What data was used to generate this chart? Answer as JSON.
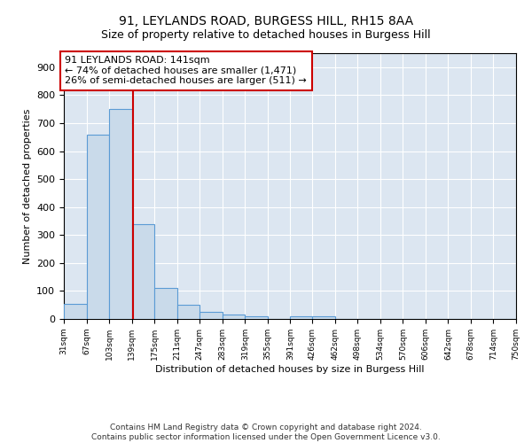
{
  "title1": "91, LEYLANDS ROAD, BURGESS HILL, RH15 8AA",
  "title2": "Size of property relative to detached houses in Burgess Hill",
  "xlabel": "Distribution of detached houses by size in Burgess Hill",
  "ylabel": "Number of detached properties",
  "bin_edges": [
    31,
    67,
    103,
    139,
    175,
    211,
    247,
    283,
    319,
    355,
    391,
    426,
    462,
    498,
    534,
    570,
    606,
    642,
    678,
    714,
    750
  ],
  "bar_heights": [
    55,
    660,
    750,
    340,
    110,
    52,
    25,
    15,
    10,
    0,
    10,
    10,
    0,
    0,
    0,
    0,
    0,
    0,
    0,
    0
  ],
  "bar_color": "#c9daea",
  "bar_edge_color": "#5b9bd5",
  "property_line_x": 141,
  "property_line_color": "#cc0000",
  "annotation_text": "91 LEYLANDS ROAD: 141sqm\n← 74% of detached houses are smaller (1,471)\n26% of semi-detached houses are larger (511) →",
  "annotation_box_color": "#ffffff",
  "annotation_box_edge_color": "#cc0000",
  "ylim": [
    0,
    950
  ],
  "yticks": [
    0,
    100,
    200,
    300,
    400,
    500,
    600,
    700,
    800,
    900
  ],
  "bg_color": "#dce6f1",
  "footer_text": "Contains HM Land Registry data © Crown copyright and database right 2024.\nContains public sector information licensed under the Open Government Licence v3.0.",
  "title1_fontsize": 10,
  "title2_fontsize": 9,
  "annot_fontsize": 8,
  "ylabel_fontsize": 8,
  "xlabel_fontsize": 8,
  "tick_fontsize": 6.5,
  "ytick_fontsize": 8,
  "footer_fontsize": 6.5
}
